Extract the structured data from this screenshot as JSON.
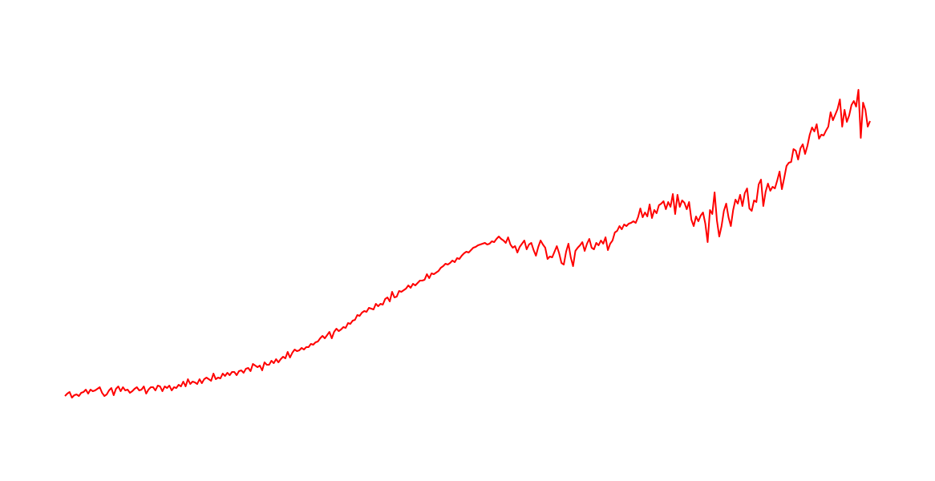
{
  "chart_data": {
    "type": "line",
    "title": "",
    "xlabel": "",
    "ylabel": "",
    "axes_visible": false,
    "grid": false,
    "legend": "none",
    "ylim": [
      0,
      600
    ],
    "series": [
      {
        "color": "#ff0000",
        "values": [
          106,
          109,
          111,
          104,
          107,
          108,
          106,
          110,
          111,
          114,
          109,
          114,
          112,
          113,
          115,
          117,
          110,
          106,
          108,
          113,
          116,
          107,
          115,
          118,
          112,
          117,
          113,
          114,
          110,
          112,
          115,
          117,
          113,
          114,
          118,
          109,
          114,
          117,
          117,
          113,
          119,
          118,
          112,
          118,
          116,
          119,
          113,
          117,
          116,
          120,
          118,
          124,
          118,
          127,
          121,
          124,
          123,
          121,
          127,
          122,
          127,
          129,
          127,
          125,
          134,
          127,
          129,
          128,
          134,
          131,
          135,
          132,
          136,
          136,
          132,
          137,
          138,
          135,
          140,
          141,
          137,
          146,
          144,
          142,
          144,
          138,
          148,
          145,
          145,
          150,
          147,
          152,
          148,
          152,
          155,
          153,
          161,
          154,
          160,
          164,
          162,
          163,
          166,
          164,
          167,
          167,
          171,
          170,
          173,
          174,
          178,
          181,
          178,
          182,
          186,
          178,
          186,
          190,
          187,
          189,
          192,
          191,
          197,
          196,
          200,
          201,
          207,
          206,
          210,
          212,
          211,
          216,
          215,
          214,
          221,
          218,
          221,
          220,
          227,
          229,
          224,
          236,
          229,
          230,
          237,
          236,
          238,
          240,
          244,
          241,
          246,
          244,
          247,
          250,
          250,
          251,
          258,
          253,
          259,
          258,
          260,
          262,
          266,
          268,
          271,
          270,
          272,
          275,
          273,
          278,
          277,
          281,
          284,
          286,
          285,
          288,
          291,
          292,
          294,
          295,
          296,
          297,
          295,
          296,
          299,
          298,
          302,
          305,
          302,
          300,
          297,
          304,
          295,
          291,
          293,
          285,
          292,
          296,
          300,
          289,
          295,
          297,
          288,
          281,
          292,
          300,
          295,
          291,
          277,
          280,
          279,
          286,
          293,
          284,
          272,
          270,
          286,
          296,
          279,
          268,
          287,
          291,
          294,
          298,
          287,
          296,
          302,
          291,
          289,
          297,
          294,
          300,
          296,
          304,
          288,
          296,
          300,
          310,
          312,
          318,
          314,
          320,
          318,
          321,
          322,
          324,
          322,
          329,
          340,
          329,
          335,
          330,
          345,
          328,
          338,
          334,
          344,
          346,
          349,
          339,
          348,
          342,
          358,
          333,
          357,
          342,
          350,
          347,
          339,
          348,
          326,
          318,
          330,
          324,
          331,
          335,
          321,
          298,
          338,
          333,
          360,
          325,
          305,
          318,
          337,
          346,
          329,
          318,
          338,
          351,
          346,
          357,
          343,
          359,
          365,
          340,
          337,
          350,
          348,
          370,
          376,
          343,
          361,
          371,
          362,
          367,
          365,
          375,
          386,
          364,
          378,
          393,
          397,
          398,
          414,
          412,
          401,
          415,
          420,
          408,
          418,
          432,
          441,
          436,
          445,
          427,
          432,
          431,
          437,
          442,
          460,
          450,
          457,
          464,
          476,
          442,
          463,
          448,
          456,
          469,
          474,
          467,
          488,
          428,
          472,
          463,
          442,
          449
        ]
      }
    ]
  }
}
